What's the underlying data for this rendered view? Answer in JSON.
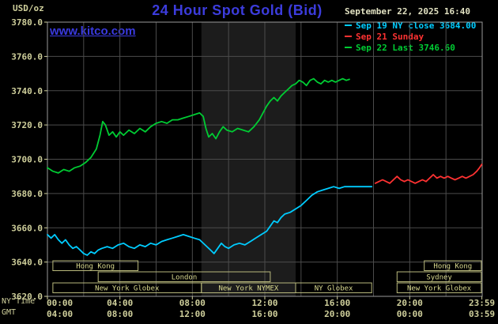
{
  "header": {
    "title": "24 Hour Spot Gold (Bid)",
    "date": "September 22, 2025 16:40",
    "site_link": "www.kitco.com",
    "y_unit": "USD/oz"
  },
  "axis_corner": {
    "ny_time": "NY Time",
    "gmt": "GMT"
  },
  "legend": [
    {
      "label": "Sep 19 NY close 3684.00",
      "color": "#00ccff"
    },
    {
      "label": "Sep 21 Sunday",
      "color": "#ff3232"
    },
    {
      "label": "Sep 22 Last 3746.60",
      "color": "#00cc33"
    }
  ],
  "chart_data": {
    "type": "line",
    "title": "24 Hour Spot Gold (Bid)",
    "ylabel": "USD/oz",
    "ylim": [
      3620,
      3780
    ],
    "ytick_step": 20,
    "yticks": [
      "3780.0",
      "3760.0",
      "3740.0",
      "3720.0",
      "3700.0",
      "3680.0",
      "3660.0",
      "3640.0",
      "3620.0"
    ],
    "x_hours": [
      0,
      4,
      8,
      12,
      16,
      20,
      23.983
    ],
    "x_labels_ny": [
      "00:00",
      "04:00",
      "08:00",
      "12:00",
      "16:00",
      "20:00",
      "23:59"
    ],
    "x_labels_gmt": [
      "04:00",
      "08:00",
      "12:00",
      "16:00",
      "20:00",
      "00:00",
      "03:59"
    ],
    "grid_hours_step": 2,
    "bands": [
      {
        "start": 8.5,
        "end": 13.7,
        "color": "#1c1c1c"
      }
    ],
    "series": [
      {
        "id": "sep19-ny-close",
        "name": "Sep 19 NY close 3684.00",
        "color": "#00ccff",
        "points": [
          [
            0,
            3656
          ],
          [
            0.2,
            3654
          ],
          [
            0.4,
            3656
          ],
          [
            0.6,
            3653
          ],
          [
            0.8,
            3651
          ],
          [
            1.0,
            3653
          ],
          [
            1.2,
            3650
          ],
          [
            1.4,
            3648
          ],
          [
            1.6,
            3649
          ],
          [
            1.8,
            3647
          ],
          [
            2.0,
            3645
          ],
          [
            2.2,
            3644
          ],
          [
            2.4,
            3646
          ],
          [
            2.6,
            3645
          ],
          [
            2.8,
            3647
          ],
          [
            3.0,
            3648
          ],
          [
            3.3,
            3649
          ],
          [
            3.6,
            3648
          ],
          [
            3.9,
            3650
          ],
          [
            4.2,
            3651
          ],
          [
            4.5,
            3649
          ],
          [
            4.8,
            3648
          ],
          [
            5.1,
            3650
          ],
          [
            5.4,
            3649
          ],
          [
            5.7,
            3651
          ],
          [
            6.0,
            3650
          ],
          [
            6.3,
            3652
          ],
          [
            6.6,
            3653
          ],
          [
            6.9,
            3654
          ],
          [
            7.2,
            3655
          ],
          [
            7.5,
            3656
          ],
          [
            7.8,
            3655
          ],
          [
            8.1,
            3654
          ],
          [
            8.4,
            3653
          ],
          [
            8.7,
            3650
          ],
          [
            9.0,
            3647
          ],
          [
            9.2,
            3645
          ],
          [
            9.4,
            3648
          ],
          [
            9.6,
            3651
          ],
          [
            9.8,
            3649
          ],
          [
            10.0,
            3648
          ],
          [
            10.3,
            3650
          ],
          [
            10.6,
            3651
          ],
          [
            10.9,
            3650
          ],
          [
            11.2,
            3652
          ],
          [
            11.5,
            3654
          ],
          [
            11.8,
            3656
          ],
          [
            12.1,
            3658
          ],
          [
            12.3,
            3661
          ],
          [
            12.5,
            3664
          ],
          [
            12.7,
            3663
          ],
          [
            12.9,
            3666
          ],
          [
            13.1,
            3668
          ],
          [
            13.4,
            3669
          ],
          [
            13.7,
            3671
          ],
          [
            14.0,
            3673
          ],
          [
            14.3,
            3676
          ],
          [
            14.6,
            3679
          ],
          [
            14.9,
            3681
          ],
          [
            15.2,
            3682
          ],
          [
            15.5,
            3683
          ],
          [
            15.8,
            3684
          ],
          [
            16.1,
            3683
          ],
          [
            16.4,
            3684
          ],
          [
            16.7,
            3684
          ],
          [
            17.1,
            3684
          ],
          [
            17.5,
            3684
          ],
          [
            17.9,
            3684
          ]
        ]
      },
      {
        "id": "sep21-sunday",
        "name": "Sep 21 Sunday",
        "color": "#ff3232",
        "points": [
          [
            18.1,
            3686
          ],
          [
            18.3,
            3687
          ],
          [
            18.5,
            3688
          ],
          [
            18.7,
            3687
          ],
          [
            18.9,
            3686
          ],
          [
            19.1,
            3688
          ],
          [
            19.3,
            3690
          ],
          [
            19.5,
            3688
          ],
          [
            19.7,
            3687
          ],
          [
            19.9,
            3688
          ],
          [
            20.1,
            3687
          ],
          [
            20.3,
            3686
          ],
          [
            20.5,
            3687
          ],
          [
            20.7,
            3688
          ],
          [
            20.9,
            3687
          ],
          [
            21.1,
            3689
          ],
          [
            21.3,
            3691
          ],
          [
            21.5,
            3689
          ],
          [
            21.7,
            3690
          ],
          [
            21.9,
            3689
          ],
          [
            22.1,
            3690
          ],
          [
            22.3,
            3689
          ],
          [
            22.5,
            3688
          ],
          [
            22.7,
            3689
          ],
          [
            22.9,
            3690
          ],
          [
            23.1,
            3689
          ],
          [
            23.3,
            3690
          ],
          [
            23.5,
            3691
          ],
          [
            23.7,
            3693
          ],
          [
            23.85,
            3695
          ],
          [
            23.98,
            3697
          ]
        ]
      },
      {
        "id": "sep22-last",
        "name": "Sep 22 Last 3746.60",
        "color": "#00cc33",
        "points": [
          [
            0,
            3695
          ],
          [
            0.3,
            3693
          ],
          [
            0.6,
            3692
          ],
          [
            0.9,
            3694
          ],
          [
            1.2,
            3693
          ],
          [
            1.5,
            3695
          ],
          [
            1.8,
            3696
          ],
          [
            2.1,
            3698
          ],
          [
            2.4,
            3701
          ],
          [
            2.7,
            3706
          ],
          [
            2.9,
            3714
          ],
          [
            3.05,
            3722
          ],
          [
            3.2,
            3720
          ],
          [
            3.4,
            3714
          ],
          [
            3.6,
            3716
          ],
          [
            3.8,
            3713
          ],
          [
            4.0,
            3716
          ],
          [
            4.2,
            3714
          ],
          [
            4.5,
            3717
          ],
          [
            4.8,
            3715
          ],
          [
            5.1,
            3718
          ],
          [
            5.4,
            3716
          ],
          [
            5.7,
            3719
          ],
          [
            6.0,
            3721
          ],
          [
            6.3,
            3722
          ],
          [
            6.6,
            3721
          ],
          [
            6.9,
            3723
          ],
          [
            7.2,
            3723
          ],
          [
            7.5,
            3724
          ],
          [
            7.8,
            3725
          ],
          [
            8.1,
            3726
          ],
          [
            8.4,
            3727
          ],
          [
            8.6,
            3725
          ],
          [
            8.75,
            3718
          ],
          [
            8.9,
            3713
          ],
          [
            9.1,
            3715
          ],
          [
            9.3,
            3712
          ],
          [
            9.5,
            3716
          ],
          [
            9.7,
            3719
          ],
          [
            9.9,
            3717
          ],
          [
            10.2,
            3716
          ],
          [
            10.5,
            3718
          ],
          [
            10.8,
            3717
          ],
          [
            11.1,
            3716
          ],
          [
            11.4,
            3719
          ],
          [
            11.7,
            3723
          ],
          [
            11.9,
            3727
          ],
          [
            12.1,
            3731
          ],
          [
            12.3,
            3734
          ],
          [
            12.5,
            3736
          ],
          [
            12.7,
            3734
          ],
          [
            12.9,
            3737
          ],
          [
            13.1,
            3739
          ],
          [
            13.3,
            3741
          ],
          [
            13.5,
            3743
          ],
          [
            13.7,
            3744
          ],
          [
            13.9,
            3746
          ],
          [
            14.1,
            3745
          ],
          [
            14.3,
            3743
          ],
          [
            14.5,
            3746
          ],
          [
            14.7,
            3747
          ],
          [
            14.9,
            3745
          ],
          [
            15.1,
            3744
          ],
          [
            15.3,
            3746
          ],
          [
            15.5,
            3745
          ],
          [
            15.7,
            3746
          ],
          [
            15.9,
            3745
          ],
          [
            16.1,
            3746
          ],
          [
            16.3,
            3747
          ],
          [
            16.5,
            3746
          ],
          [
            16.67,
            3746.6
          ]
        ]
      }
    ],
    "sessions": [
      {
        "label": "Hong Kong",
        "row": 0,
        "start": 0.3,
        "end": 5.0
      },
      {
        "label": "Hong Kong",
        "row": 0,
        "start": 20.8,
        "end": 23.95
      },
      {
        "label": "London",
        "row": 1,
        "start": 2.8,
        "end": 12.3
      },
      {
        "label": "Sydney",
        "row": 1,
        "start": 19.3,
        "end": 23.95
      },
      {
        "label": "New York Globex",
        "row": 2,
        "start": 0.3,
        "end": 8.5
      },
      {
        "label": "New York NYMEX",
        "row": 2,
        "start": 8.5,
        "end": 13.7
      },
      {
        "label": "NY Globex",
        "row": 2,
        "start": 13.7,
        "end": 17.9
      },
      {
        "label": "New York Globex",
        "row": 2,
        "start": 19.3,
        "end": 23.95
      }
    ]
  }
}
